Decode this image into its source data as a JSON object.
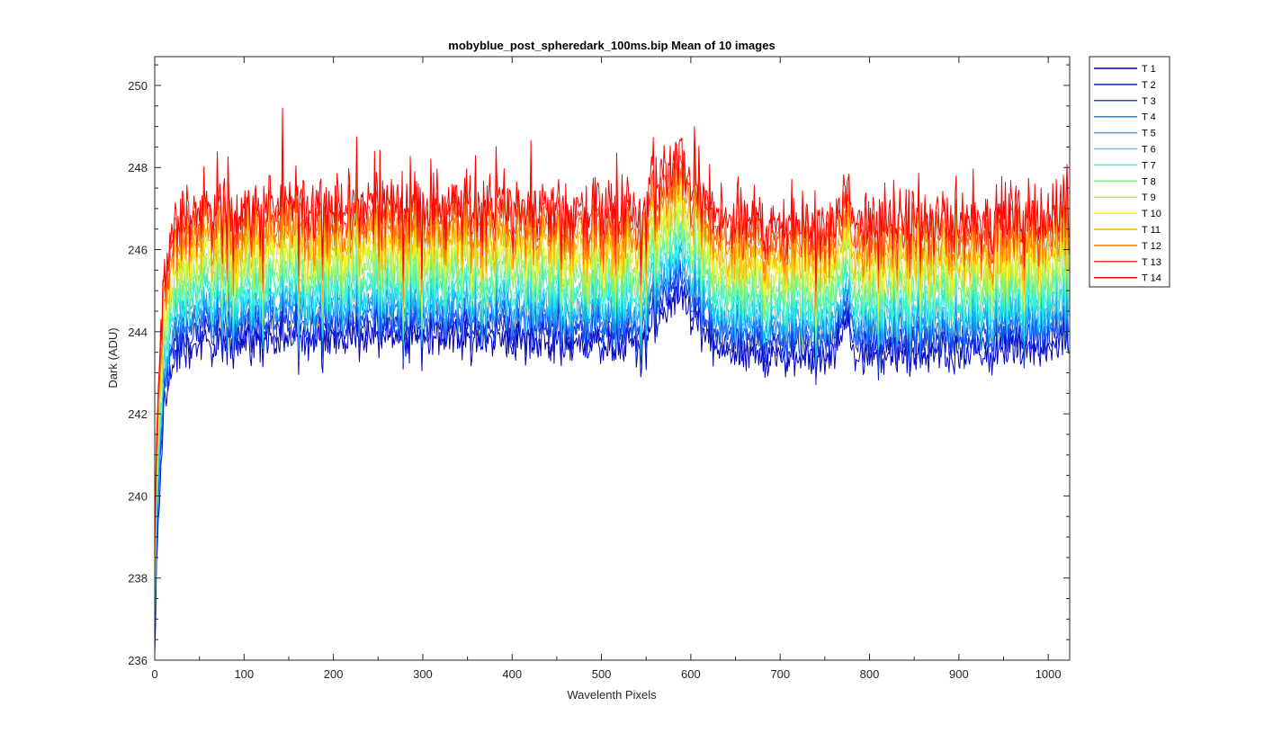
{
  "chart_data": {
    "type": "line",
    "title": "mobyblue_post_spheredark_100ms.bip  Mean of 10 images",
    "xlabel": "Wavelenth Pixels",
    "ylabel": "Dark (ADU)",
    "xlim": [
      0,
      1024
    ],
    "ylim": [
      236,
      250.7
    ],
    "xticks": [
      0,
      100,
      200,
      300,
      400,
      500,
      600,
      700,
      800,
      900,
      1000
    ],
    "yticks": [
      236,
      238,
      240,
      242,
      244,
      246,
      248,
      250
    ],
    "grid": false,
    "legend_position": "outside-top-right",
    "colormap": "jet",
    "n_pixels": 1024,
    "series": [
      {
        "name": "T 1",
        "color": "#0000bf",
        "start": 236.0,
        "plateau": 243.6,
        "bump_center": 585,
        "bump_height": 1.3
      },
      {
        "name": "T 2",
        "color": "#0a1ed8",
        "start": 236.5,
        "plateau": 243.9,
        "bump_center": 585,
        "bump_height": 1.3
      },
      {
        "name": "T 3",
        "color": "#1450ec",
        "start": 236.8,
        "plateau": 244.1,
        "bump_center": 585,
        "bump_height": 1.3
      },
      {
        "name": "T 4",
        "color": "#1c86f4",
        "start": 237.0,
        "plateau": 244.3,
        "bump_center": 585,
        "bump_height": 1.3
      },
      {
        "name": "T 5",
        "color": "#16b8f2",
        "start": 237.2,
        "plateau": 244.5,
        "bump_center": 585,
        "bump_height": 1.3
      },
      {
        "name": "T 6",
        "color": "#28e6e6",
        "start": 237.4,
        "plateau": 244.75,
        "bump_center": 585,
        "bump_height": 1.3
      },
      {
        "name": "T 7",
        "color": "#46f2c0",
        "start": 237.6,
        "plateau": 245.0,
        "bump_center": 585,
        "bump_height": 1.3
      },
      {
        "name": "T 8",
        "color": "#80f080",
        "start": 237.8,
        "plateau": 245.25,
        "bump_center": 585,
        "bump_height": 1.3
      },
      {
        "name": "T 9",
        "color": "#b4f050",
        "start": 238.0,
        "plateau": 245.5,
        "bump_center": 585,
        "bump_height": 1.3
      },
      {
        "name": "T 10",
        "color": "#f0f028",
        "start": 238.2,
        "plateau": 245.75,
        "bump_center": 585,
        "bump_height": 1.3
      },
      {
        "name": "T 11",
        "color": "#ffb400",
        "start": 238.4,
        "plateau": 246.0,
        "bump_center": 585,
        "bump_height": 1.3
      },
      {
        "name": "T 12",
        "color": "#ff7800",
        "start": 238.6,
        "plateau": 246.3,
        "bump_center": 585,
        "bump_height": 1.3
      },
      {
        "name": "T 13",
        "color": "#ff3c14",
        "start": 238.8,
        "plateau": 246.6,
        "bump_center": 585,
        "bump_height": 1.3
      },
      {
        "name": "T 14",
        "color": "#ff0000",
        "start": 239.0,
        "plateau": 246.9,
        "bump_center": 585,
        "bump_height": 1.3
      }
    ]
  }
}
